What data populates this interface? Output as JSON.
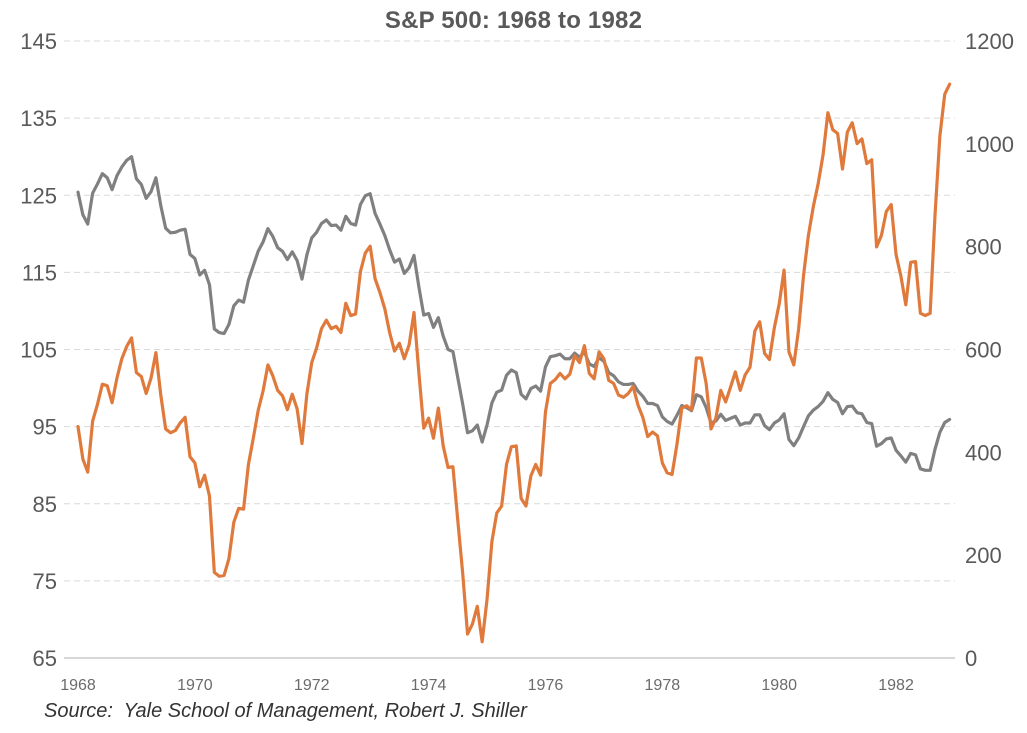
{
  "chart_data": {
    "type": "line",
    "title": "S&P 500: 1968 to 1982",
    "source_note": "Source:  Yale School of Management, Robert J. Shiller",
    "x_unit": "monthly",
    "x_start": "1968-01",
    "x_end": "1982-12",
    "x_ticks": [
      "1968",
      "1970",
      "1972",
      "1974",
      "1976",
      "1978",
      "1980",
      "1982"
    ],
    "left_axis": {
      "min": 65,
      "max": 145,
      "ticks": [
        65,
        75,
        85,
        95,
        105,
        115,
        125,
        135,
        145
      ]
    },
    "right_axis": {
      "min": 0,
      "max": 1200,
      "ticks": [
        0,
        200,
        400,
        600,
        800,
        1000,
        1200
      ]
    },
    "grid": "horizontal-dashed",
    "legend": "none",
    "series": [
      {
        "id": "gray-line",
        "axis": "right",
        "color": "#808080",
        "values": [
          906,
          862,
          844,
          904,
          922,
          942,
          934,
          911,
          938,
          955,
          968,
          975,
          932,
          921,
          894,
          907,
          934,
          880,
          836,
          827,
          828,
          832,
          834,
          785,
          777,
          745,
          754,
          726,
          640,
          633,
          631,
          649,
          685,
          696,
          692,
          735,
          763,
          791,
          809,
          835,
          820,
          798,
          791,
          775,
          790,
          773,
          737,
          784,
          817,
          828,
          845,
          852,
          841,
          842,
          832,
          859,
          845,
          842,
          882,
          899,
          903,
          865,
          844,
          822,
          794,
          770,
          776,
          748,
          759,
          783,
          722,
          667,
          670,
          643,
          662,
          626,
          600,
          596,
          545,
          494,
          438,
          442,
          453,
          420,
          453,
          496,
          517,
          521,
          550,
          560,
          555,
          513,
          504,
          524,
          529,
          519,
          566,
          586,
          588,
          591,
          582,
          582,
          593,
          585,
          595,
          572,
          567,
          584,
          577,
          555,
          549,
          537,
          532,
          532,
          534,
          519,
          509,
          495,
          495,
          491,
          469,
          460,
          455,
          472,
          491,
          487,
          481,
          512,
          508,
          487,
          457,
          461,
          474,
          462,
          466,
          470,
          453,
          457,
          457,
          473,
          473,
          452,
          444,
          457,
          463,
          475,
          425,
          413,
          428,
          450,
          471,
          482,
          489,
          499,
          516,
          503,
          497,
          475,
          489,
          490,
          477,
          475,
          458,
          456,
          412,
          417,
          426,
          428,
          404,
          393,
          381,
          398,
          395,
          368,
          365,
          365,
          406,
          439,
          458,
          464
        ]
      },
      {
        "id": "orange-line",
        "axis": "left",
        "color": "#E07A3C",
        "values": [
          95.0,
          90.8,
          89.1,
          95.7,
          97.9,
          100.5,
          100.3,
          98.1,
          101.3,
          103.8,
          105.4,
          106.5,
          102.0,
          101.5,
          99.3,
          101.3,
          104.6,
          99.1,
          94.7,
          94.2,
          94.5,
          95.5,
          96.2,
          91.1,
          90.3,
          87.2,
          88.7,
          86.0,
          76.1,
          75.6,
          75.7,
          77.9,
          82.6,
          84.4,
          84.3,
          90.1,
          93.5,
          97.1,
          99.6,
          103.0,
          101.6,
          99.7,
          99.0,
          97.2,
          99.2,
          97.3,
          92.8,
          99.2,
          103.3,
          105.2,
          107.7,
          108.8,
          107.7,
          108.0,
          107.2,
          111.0,
          109.4,
          109.6,
          115.1,
          117.5,
          118.4,
          114.2,
          112.4,
          110.3,
          107.2,
          104.8,
          105.8,
          103.8,
          105.6,
          109.8,
          102.0,
          94.8,
          96.1,
          93.5,
          97.4,
          92.5,
          89.7,
          89.8,
          82.8,
          76.0,
          68.1,
          69.4,
          71.7,
          67.1,
          72.6,
          80.1,
          83.8,
          84.7,
          90.1,
          92.4,
          92.5,
          85.7,
          84.7,
          88.6,
          90.1,
          88.7,
          96.9,
          100.6,
          101.1,
          101.9,
          101.2,
          101.8,
          104.2,
          103.3,
          105.5,
          101.9,
          101.2,
          104.7,
          103.8,
          101.0,
          100.6,
          99.1,
          98.8,
          99.3,
          100.2,
          97.8,
          96.2,
          93.7,
          94.3,
          93.8,
          90.3,
          89.0,
          88.8,
          92.7,
          97.4,
          97.7,
          97.2,
          103.9,
          103.9,
          100.6,
          94.7,
          96.1,
          99.7,
          98.2,
          100.1,
          102.1,
          99.7,
          101.7,
          102.7,
          107.4,
          108.6,
          104.5,
          103.7,
          107.8,
          110.9,
          115.3,
          104.7,
          103.0,
          107.7,
          114.6,
          119.8,
          123.5,
          126.5,
          130.2,
          135.7,
          133.5,
          133.0,
          128.4,
          133.2,
          134.4,
          131.7,
          132.3,
          129.1,
          129.6,
          118.3,
          119.8,
          122.9,
          123.8,
          117.3,
          114.5,
          110.8,
          116.3,
          116.4,
          109.7,
          109.4,
          109.7,
          122.4,
          132.7,
          138.1,
          139.4
        ]
      }
    ]
  },
  "colors": {
    "grid": "#D9D9D9",
    "axis_line": "#BFBFBF",
    "y_tick_text": "#595959",
    "x_tick_text": "#6B6B6B",
    "title_text": "#595959",
    "source_text": "#333333"
  }
}
